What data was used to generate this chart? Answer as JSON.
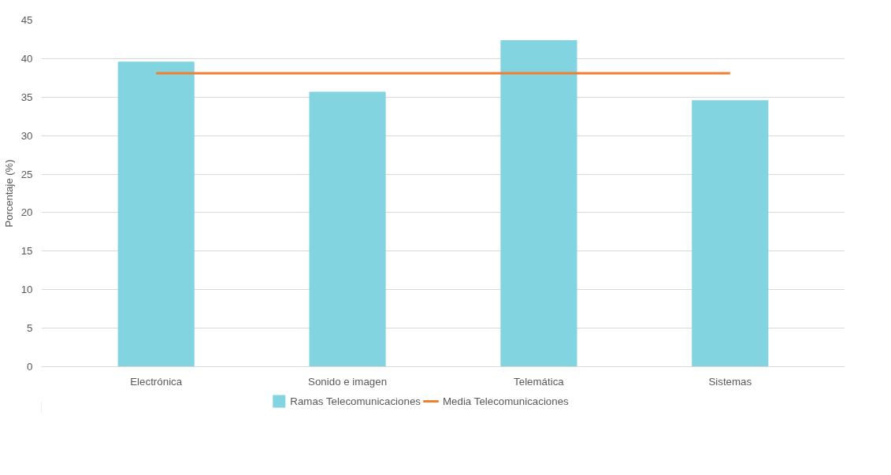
{
  "chart_data": {
    "type": "bar",
    "ylabel": "Porcentaje (%)",
    "categories": [
      "Electrónica",
      "Sonido e imagen",
      "Telemática",
      "Sistemas"
    ],
    "series": [
      {
        "name": "Ramas Telecomunicaciones",
        "color": "#82d4e0",
        "values": [
          39.6,
          35.7,
          42.4,
          34.6
        ]
      },
      {
        "name": "Media Telecomunicaciones",
        "type": "line",
        "color": "#f07f31",
        "values": [
          38.1,
          38.1,
          38.1,
          38.1
        ]
      }
    ],
    "ylim": [
      0,
      45
    ],
    "yticks": [
      0,
      5,
      10,
      15,
      20,
      25,
      30,
      35,
      40,
      45
    ],
    "grid": "y",
    "legend": "bottom"
  }
}
